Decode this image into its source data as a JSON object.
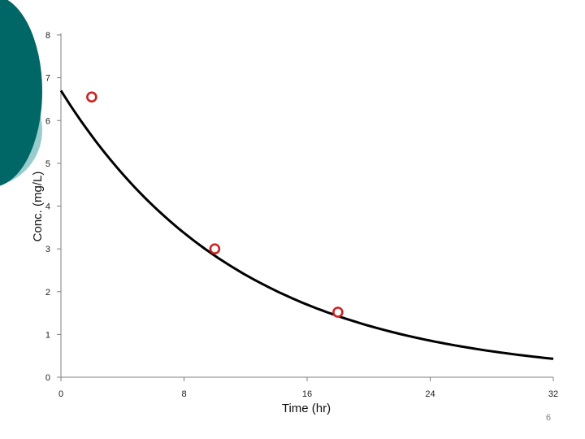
{
  "theme": {
    "accent_dark": "#006666",
    "accent_light": "#99cccc",
    "marker_color": "#cc2222",
    "curve_color": "#000000"
  },
  "chart_data": {
    "type": "scatter",
    "xlabel": "Time (hr)",
    "ylabel": "Conc. (mg/L)",
    "xlim": [
      0,
      32
    ],
    "ylim": [
      0,
      8
    ],
    "xticks": [
      0,
      8,
      16,
      24,
      32
    ],
    "yticks": [
      0,
      1,
      2,
      3,
      4,
      5,
      6,
      7,
      8
    ],
    "grid": false,
    "series": [
      {
        "kind": "points",
        "marker": "open-circle",
        "x": [
          2,
          10,
          18
        ],
        "y": [
          6.55,
          3.0,
          1.52
        ]
      },
      {
        "kind": "fitted-curve",
        "model": "exponential-decay",
        "x": [
          0,
          4,
          8,
          12,
          16,
          20,
          24,
          28,
          32
        ],
        "y": [
          6.7,
          4.75,
          3.37,
          2.39,
          1.69,
          1.2,
          0.85,
          0.6,
          0.43
        ]
      }
    ]
  },
  "slide_number": "6"
}
